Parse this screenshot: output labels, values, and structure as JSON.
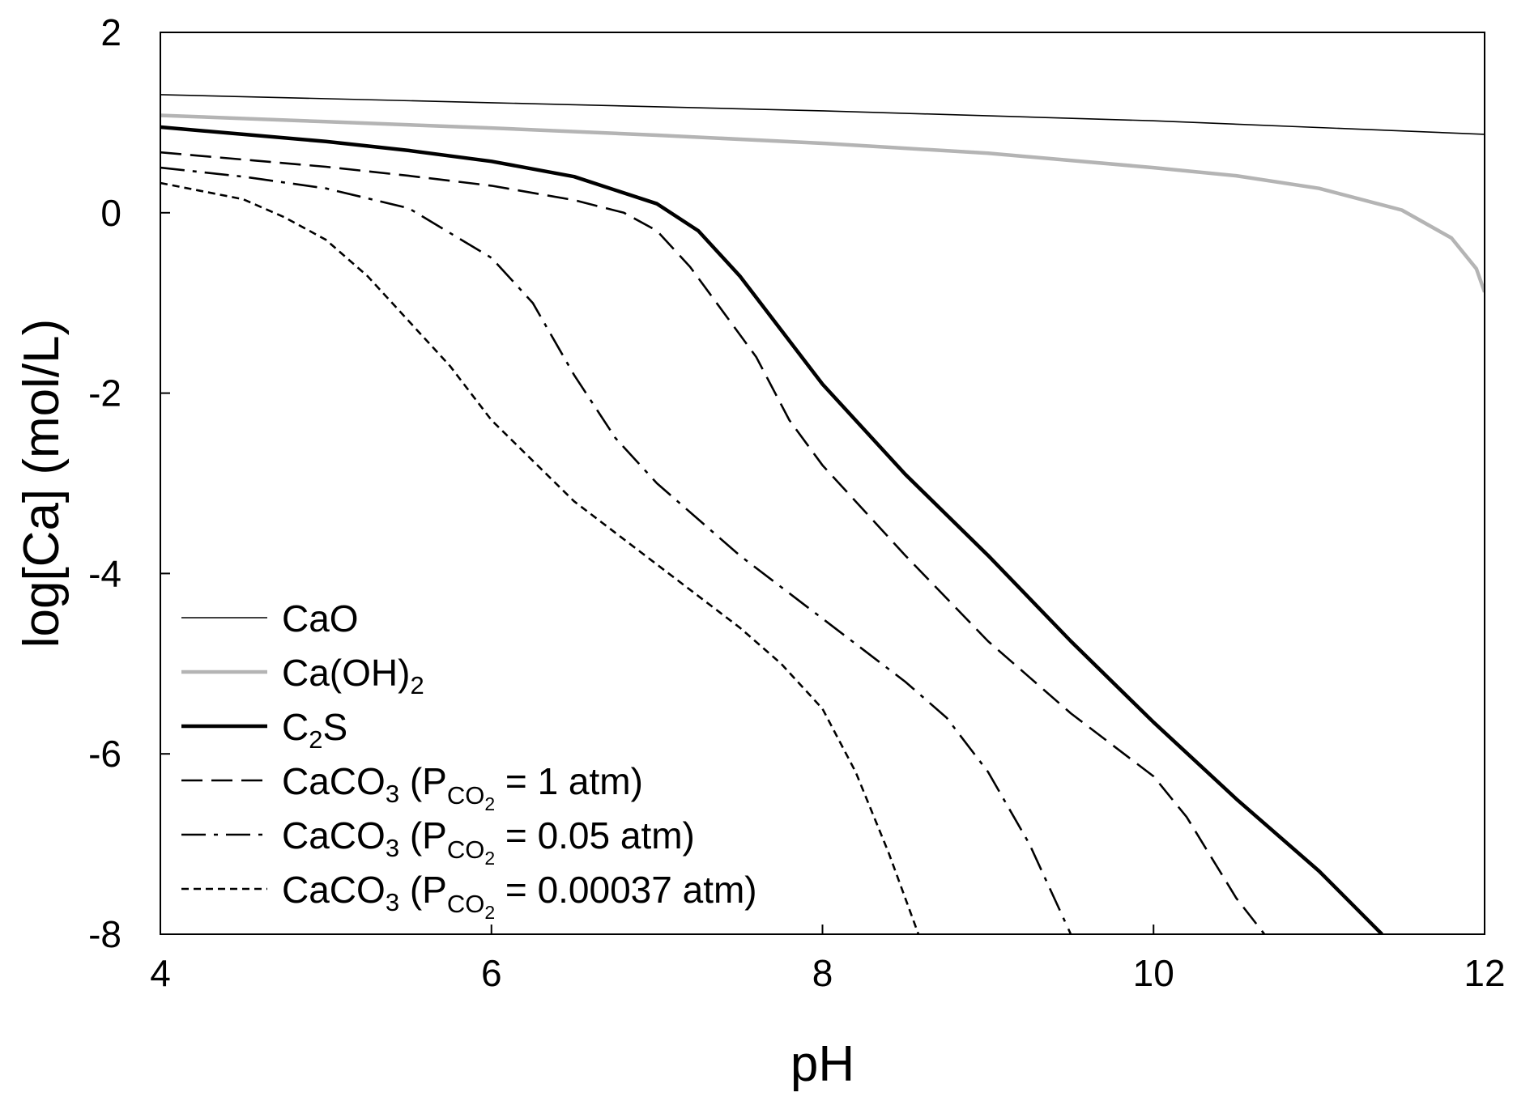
{
  "chart_data": {
    "type": "line",
    "xlabel": "pH",
    "ylabel": "log[Ca] (mol/L)",
    "xlim": [
      4,
      12
    ],
    "ylim": [
      -8,
      2
    ],
    "x_ticks": [
      "4",
      "6",
      "8",
      "10",
      "12"
    ],
    "y_ticks": [
      "2",
      "0",
      "-2",
      "-4",
      "-6",
      "-8"
    ],
    "grid": false,
    "legend_position": "bottom-left",
    "series": [
      {
        "name": "CaO",
        "legend": {
          "main": "CaO",
          "sub": "",
          "tail": "",
          "psub": "",
          "psubsub": "",
          "end": ""
        },
        "color": "#000000",
        "style": "solid",
        "points": [
          [
            4.0,
            1.31
          ],
          [
            6.0,
            1.22
          ],
          [
            8.0,
            1.13
          ],
          [
            10.0,
            1.02
          ],
          [
            12.0,
            0.87
          ]
        ]
      },
      {
        "name": "Ca(OH)2",
        "legend": {
          "main": "Ca(OH)",
          "sub": "2",
          "tail": "",
          "psub": "",
          "psubsub": "",
          "end": ""
        },
        "color": "#b4b4b4",
        "style": "solid",
        "points": [
          [
            4.0,
            1.08
          ],
          [
            5.0,
            1.01
          ],
          [
            6.0,
            0.94
          ],
          [
            7.0,
            0.86
          ],
          [
            8.0,
            0.77
          ],
          [
            9.0,
            0.66
          ],
          [
            10.0,
            0.5
          ],
          [
            10.5,
            0.41
          ],
          [
            11.0,
            0.27
          ],
          [
            11.5,
            0.03
          ],
          [
            11.8,
            -0.28
          ],
          [
            11.95,
            -0.62
          ],
          [
            12.0,
            -0.88
          ]
        ]
      },
      {
        "name": "C2S",
        "legend": {
          "main": "C",
          "sub": "2",
          "tail": "S",
          "psub": "",
          "psubsub": "",
          "end": ""
        },
        "color": "#000000",
        "style": "solid-thick",
        "points": [
          [
            4.0,
            0.95
          ],
          [
            4.5,
            0.87
          ],
          [
            5.0,
            0.79
          ],
          [
            5.5,
            0.69
          ],
          [
            6.0,
            0.57
          ],
          [
            6.5,
            0.4
          ],
          [
            7.0,
            0.1
          ],
          [
            7.25,
            -0.2
          ],
          [
            7.5,
            -0.7
          ],
          [
            7.75,
            -1.3
          ],
          [
            8.0,
            -1.9
          ],
          [
            8.5,
            -2.9
          ],
          [
            9.0,
            -3.8
          ],
          [
            9.5,
            -4.75
          ],
          [
            10.0,
            -5.65
          ],
          [
            10.5,
            -6.5
          ],
          [
            11.0,
            -7.3
          ],
          [
            11.38,
            -8.0
          ]
        ]
      },
      {
        "name": "CaCO3 (PCO2 = 1 atm)",
        "legend": {
          "main": "CaCO",
          "sub": "3",
          "tail": " (P",
          "psub": "CO",
          "psubsub": "2",
          "end": " = 1 atm)"
        },
        "color": "#000000",
        "style": "dashed",
        "points": [
          [
            4.0,
            0.67
          ],
          [
            4.5,
            0.59
          ],
          [
            5.0,
            0.51
          ],
          [
            5.5,
            0.41
          ],
          [
            6.0,
            0.3
          ],
          [
            6.5,
            0.14
          ],
          [
            6.8,
            0.0
          ],
          [
            7.0,
            -0.2
          ],
          [
            7.2,
            -0.6
          ],
          [
            7.4,
            -1.1
          ],
          [
            7.6,
            -1.6
          ],
          [
            7.8,
            -2.3
          ],
          [
            8.0,
            -2.8
          ],
          [
            8.5,
            -3.8
          ],
          [
            9.0,
            -4.75
          ],
          [
            9.5,
            -5.55
          ],
          [
            10.0,
            -6.25
          ],
          [
            10.2,
            -6.7
          ],
          [
            10.4,
            -7.3
          ],
          [
            10.5,
            -7.6
          ],
          [
            10.67,
            -8.0
          ]
        ]
      },
      {
        "name": "CaCO3 (PCO2 = 0.05 atm)",
        "legend": {
          "main": "CaCO",
          "sub": "3",
          "tail": " (P",
          "psub": "CO",
          "psubsub": "2",
          "end": " = 0.05 atm)"
        },
        "color": "#000000",
        "style": "dashdot",
        "points": [
          [
            4.0,
            0.5
          ],
          [
            4.5,
            0.4
          ],
          [
            5.0,
            0.27
          ],
          [
            5.5,
            0.05
          ],
          [
            6.0,
            -0.5
          ],
          [
            6.25,
            -1.0
          ],
          [
            6.5,
            -1.8
          ],
          [
            6.75,
            -2.5
          ],
          [
            7.0,
            -3.0
          ],
          [
            7.5,
            -3.8
          ],
          [
            8.0,
            -4.5
          ],
          [
            8.5,
            -5.2
          ],
          [
            8.75,
            -5.6
          ],
          [
            9.0,
            -6.2
          ],
          [
            9.25,
            -7.0
          ],
          [
            9.5,
            -8.0
          ]
        ]
      },
      {
        "name": "CaCO3 (PCO2 = 0.00037 atm)",
        "legend": {
          "main": "CaCO",
          "sub": "3",
          "tail": " (P",
          "psub": "CO",
          "psubsub": "2",
          "end": " = 0.00037 atm)"
        },
        "color": "#000000",
        "style": "dotted",
        "points": [
          [
            4.0,
            0.33
          ],
          [
            4.5,
            0.15
          ],
          [
            4.75,
            -0.05
          ],
          [
            5.0,
            -0.3
          ],
          [
            5.25,
            -0.7
          ],
          [
            5.5,
            -1.2
          ],
          [
            5.75,
            -1.7
          ],
          [
            6.0,
            -2.3
          ],
          [
            6.5,
            -3.2
          ],
          [
            7.0,
            -3.9
          ],
          [
            7.5,
            -4.6
          ],
          [
            7.75,
            -5.0
          ],
          [
            8.0,
            -5.5
          ],
          [
            8.2,
            -6.2
          ],
          [
            8.4,
            -7.1
          ],
          [
            8.58,
            -8.0
          ]
        ]
      }
    ]
  }
}
